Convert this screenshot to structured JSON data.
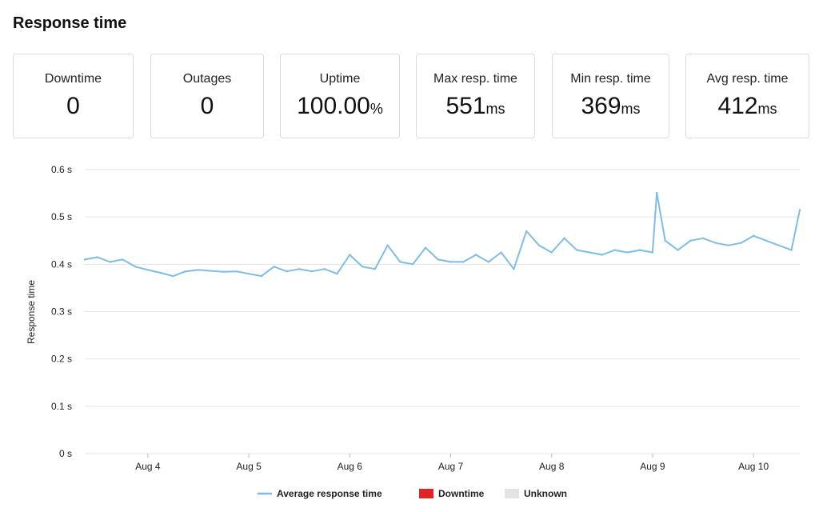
{
  "header": {
    "title": "Response time"
  },
  "stats": [
    {
      "label": "Downtime",
      "value": "0",
      "unit": ""
    },
    {
      "label": "Outages",
      "value": "0",
      "unit": ""
    },
    {
      "label": "Uptime",
      "value": "100.00",
      "unit": "%"
    },
    {
      "label": "Max resp. time",
      "value": "551",
      "unit": "ms"
    },
    {
      "label": "Min resp. time",
      "value": "369",
      "unit": "ms"
    },
    {
      "label": "Avg resp. time",
      "value": "412",
      "unit": "ms"
    }
  ],
  "colors": {
    "series": "#7dbde8",
    "downtime": "#e02424",
    "unknown": "#e3e3e3",
    "grid": "#e4e4e4"
  },
  "chart_data": {
    "type": "line",
    "ylabel": "Response time",
    "xlabel": "",
    "ylim": [
      0,
      0.6
    ],
    "y_ticks": [
      {
        "value": 0,
        "label": "0 s"
      },
      {
        "value": 0.1,
        "label": "0.1 s"
      },
      {
        "value": 0.2,
        "label": "0.2 s"
      },
      {
        "value": 0.3,
        "label": "0.3 s"
      },
      {
        "value": 0.4,
        "label": "0.4 s"
      },
      {
        "value": 0.5,
        "label": "0.5 s"
      },
      {
        "value": 0.6,
        "label": "0.6 s"
      }
    ],
    "xlim": [
      "Aug 3 09:00",
      "Aug 10 11:00"
    ],
    "x_ticks": [
      {
        "value": "Aug 4",
        "label": "Aug 4"
      },
      {
        "value": "Aug 5",
        "label": "Aug 5"
      },
      {
        "value": "Aug 6",
        "label": "Aug 6"
      },
      {
        "value": "Aug 7",
        "label": "Aug 7"
      },
      {
        "value": "Aug 8",
        "label": "Aug 8"
      },
      {
        "value": "Aug 9",
        "label": "Aug 9"
      },
      {
        "value": "Aug 10",
        "label": "Aug 10"
      }
    ],
    "grid": true,
    "legend_position": "bottom",
    "legend": [
      "Average response time",
      "Downtime",
      "Unknown"
    ],
    "series": [
      {
        "name": "Average response time",
        "x": [
          "Aug 3 09:00",
          "Aug 3 12:00",
          "Aug 3 15:00",
          "Aug 3 18:00",
          "Aug 3 21:00",
          "Aug 4 00:00",
          "Aug 4 03:00",
          "Aug 4 06:00",
          "Aug 4 09:00",
          "Aug 4 12:00",
          "Aug 4 15:00",
          "Aug 4 18:00",
          "Aug 4 21:00",
          "Aug 5 00:00",
          "Aug 5 03:00",
          "Aug 5 06:00",
          "Aug 5 09:00",
          "Aug 5 12:00",
          "Aug 5 15:00",
          "Aug 5 18:00",
          "Aug 5 21:00",
          "Aug 6 00:00",
          "Aug 6 03:00",
          "Aug 6 06:00",
          "Aug 6 09:00",
          "Aug 6 12:00",
          "Aug 6 15:00",
          "Aug 6 18:00",
          "Aug 6 21:00",
          "Aug 7 00:00",
          "Aug 7 03:00",
          "Aug 7 06:00",
          "Aug 7 09:00",
          "Aug 7 12:00",
          "Aug 7 15:00",
          "Aug 7 18:00",
          "Aug 7 21:00",
          "Aug 8 00:00",
          "Aug 8 03:00",
          "Aug 8 06:00",
          "Aug 8 09:00",
          "Aug 8 12:00",
          "Aug 8 15:00",
          "Aug 8 18:00",
          "Aug 8 21:00",
          "Aug 9 00:00",
          "Aug 9 01:00",
          "Aug 9 03:00",
          "Aug 9 06:00",
          "Aug 9 09:00",
          "Aug 9 12:00",
          "Aug 9 15:00",
          "Aug 9 18:00",
          "Aug 9 21:00",
          "Aug 10 00:00",
          "Aug 10 03:00",
          "Aug 10 06:00",
          "Aug 10 09:00",
          "Aug 10 11:00"
        ],
        "values": [
          0.41,
          0.415,
          0.405,
          0.41,
          0.395,
          0.388,
          0.382,
          0.375,
          0.385,
          0.388,
          0.386,
          0.384,
          0.385,
          0.38,
          0.375,
          0.395,
          0.385,
          0.39,
          0.385,
          0.39,
          0.38,
          0.42,
          0.395,
          0.39,
          0.44,
          0.405,
          0.4,
          0.435,
          0.41,
          0.405,
          0.405,
          0.42,
          0.405,
          0.425,
          0.39,
          0.47,
          0.44,
          0.425,
          0.455,
          0.43,
          0.425,
          0.42,
          0.43,
          0.425,
          0.43,
          0.425,
          0.551,
          0.45,
          0.43,
          0.45,
          0.455,
          0.445,
          0.44,
          0.445,
          0.46,
          0.45,
          0.44,
          0.43,
          0.515
        ]
      }
    ]
  }
}
